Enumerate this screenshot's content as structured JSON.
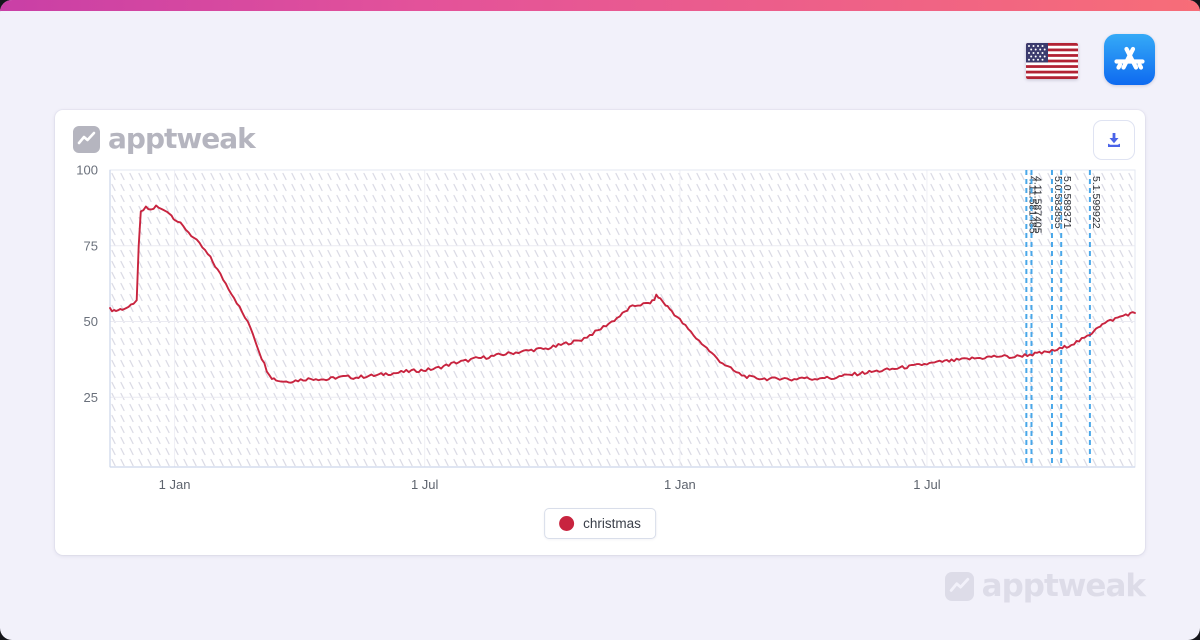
{
  "page": {
    "background": "#f2f1fa",
    "topbar_gradient_left": "#c93fa6",
    "topbar_gradient_right": "#f76d78"
  },
  "header": {
    "country_icon": "us-flag",
    "store_icon": "app-store"
  },
  "card": {
    "logo_text": "apptweak"
  },
  "watermark": {
    "text": "apptweak"
  },
  "chart_data": {
    "type": "line",
    "title": "",
    "xlabel": "",
    "ylabel": "",
    "ylim": [
      2,
      100
    ],
    "y_ticks": [
      25,
      50,
      75,
      100
    ],
    "grid": true,
    "legend_position": "bottom",
    "background_pattern": "diagonal-dash-watermark",
    "x_ticks": [
      {
        "pos": 0.063,
        "label": "1 Jan"
      },
      {
        "pos": 0.307,
        "label": "1 Jul"
      },
      {
        "pos": 0.556,
        "label": "1 Jan"
      },
      {
        "pos": 0.797,
        "label": "1 Jul"
      }
    ],
    "marker_color": "#49a7e9",
    "markers": [
      {
        "pos": 0.894,
        "label": "4.11.581485"
      },
      {
        "pos": 0.899,
        "label": "4.11.587405"
      },
      {
        "pos": 0.919,
        "label": "5.0.583855"
      },
      {
        "pos": 0.928,
        "label": "5.0.589371"
      },
      {
        "pos": 0.956,
        "label": "5.1.599922"
      }
    ],
    "series": [
      {
        "name": "christmas",
        "color": "#c8243f",
        "points": [
          [
            0.0,
            54
          ],
          [
            0.006,
            53.6
          ],
          [
            0.012,
            54.2
          ],
          [
            0.018,
            54.8
          ],
          [
            0.023,
            55.5
          ],
          [
            0.026,
            57
          ],
          [
            0.028,
            75
          ],
          [
            0.03,
            86
          ],
          [
            0.035,
            87.5
          ],
          [
            0.04,
            86.8
          ],
          [
            0.045,
            88
          ],
          [
            0.05,
            87
          ],
          [
            0.056,
            86.5
          ],
          [
            0.06,
            85
          ],
          [
            0.066,
            83
          ],
          [
            0.074,
            80.5
          ],
          [
            0.082,
            77.5
          ],
          [
            0.09,
            74.5
          ],
          [
            0.098,
            71
          ],
          [
            0.105,
            67
          ],
          [
            0.113,
            62.5
          ],
          [
            0.121,
            58
          ],
          [
            0.129,
            53
          ],
          [
            0.137,
            48
          ],
          [
            0.142,
            43.5
          ],
          [
            0.148,
            38
          ],
          [
            0.153,
            34
          ],
          [
            0.158,
            31.5
          ],
          [
            0.164,
            30.5
          ],
          [
            0.172,
            30.2
          ],
          [
            0.181,
            30.5
          ],
          [
            0.191,
            31
          ],
          [
            0.201,
            31.2
          ],
          [
            0.211,
            30.8
          ],
          [
            0.22,
            31.5
          ],
          [
            0.23,
            31.8
          ],
          [
            0.24,
            31.5
          ],
          [
            0.25,
            32
          ],
          [
            0.26,
            32.2
          ],
          [
            0.269,
            32.8
          ],
          [
            0.279,
            33
          ],
          [
            0.289,
            33.5
          ],
          [
            0.299,
            33.8
          ],
          [
            0.308,
            34
          ],
          [
            0.318,
            34.5
          ],
          [
            0.328,
            35.5
          ],
          [
            0.338,
            36.5
          ],
          [
            0.347,
            37
          ],
          [
            0.357,
            37.8
          ],
          [
            0.367,
            38.2
          ],
          [
            0.377,
            38.8
          ],
          [
            0.386,
            39.3
          ],
          [
            0.396,
            39.8
          ],
          [
            0.406,
            40.3
          ],
          [
            0.416,
            40.8
          ],
          [
            0.425,
            41
          ],
          [
            0.435,
            41.8
          ],
          [
            0.445,
            42.8
          ],
          [
            0.455,
            43.5
          ],
          [
            0.46,
            44
          ],
          [
            0.468,
            45.5
          ],
          [
            0.476,
            47
          ],
          [
            0.484,
            48.8
          ],
          [
            0.492,
            50.5
          ],
          [
            0.5,
            52.5
          ],
          [
            0.507,
            54.5
          ],
          [
            0.515,
            55.5
          ],
          [
            0.523,
            55.8
          ],
          [
            0.529,
            56.5
          ],
          [
            0.533,
            58.5
          ],
          [
            0.537,
            57.5
          ],
          [
            0.542,
            55.5
          ],
          [
            0.548,
            53.5
          ],
          [
            0.556,
            50.5
          ],
          [
            0.564,
            47.5
          ],
          [
            0.572,
            44.5
          ],
          [
            0.58,
            42
          ],
          [
            0.587,
            39.5
          ],
          [
            0.595,
            37
          ],
          [
            0.603,
            35
          ],
          [
            0.611,
            33.2
          ],
          [
            0.619,
            32
          ],
          [
            0.626,
            31.5
          ],
          [
            0.636,
            31.2
          ],
          [
            0.646,
            31
          ],
          [
            0.656,
            31.4
          ],
          [
            0.665,
            30.8
          ],
          [
            0.675,
            31.5
          ],
          [
            0.685,
            31
          ],
          [
            0.695,
            31.6
          ],
          [
            0.704,
            31.2
          ],
          [
            0.714,
            32
          ],
          [
            0.724,
            32.5
          ],
          [
            0.734,
            33
          ],
          [
            0.743,
            33.4
          ],
          [
            0.753,
            33.8
          ],
          [
            0.763,
            34.3
          ],
          [
            0.773,
            34.8
          ],
          [
            0.782,
            35.2
          ],
          [
            0.792,
            35.8
          ],
          [
            0.802,
            36.2
          ],
          [
            0.812,
            36.8
          ],
          [
            0.821,
            37
          ],
          [
            0.831,
            37.4
          ],
          [
            0.841,
            37.8
          ],
          [
            0.851,
            38
          ],
          [
            0.86,
            38.4
          ],
          [
            0.87,
            38.6
          ],
          [
            0.88,
            38.2
          ],
          [
            0.89,
            38.8
          ],
          [
            0.9,
            39.2
          ],
          [
            0.909,
            39.6
          ],
          [
            0.919,
            40.2
          ],
          [
            0.929,
            41.2
          ],
          [
            0.938,
            42.5
          ],
          [
            0.948,
            44
          ],
          [
            0.956,
            45.5
          ],
          [
            0.962,
            48
          ],
          [
            0.968,
            49
          ],
          [
            0.976,
            50.3
          ],
          [
            0.983,
            51.2
          ],
          [
            0.991,
            52.3
          ],
          [
            1.0,
            52.8
          ]
        ]
      }
    ]
  }
}
